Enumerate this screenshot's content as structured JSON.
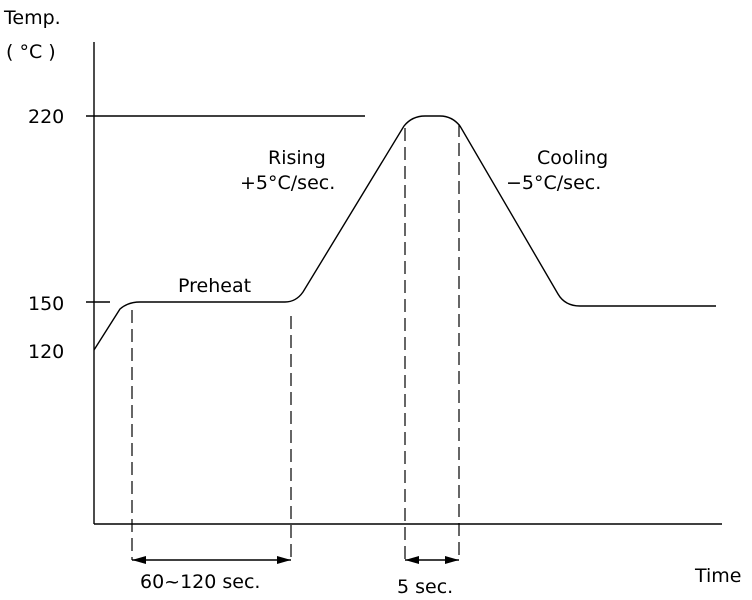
{
  "axes": {
    "y_title": "Temp.",
    "y_unit": "( °C )",
    "x_title": "Time"
  },
  "y_ticks": [
    "220",
    "150",
    "120"
  ],
  "phases": {
    "preheat": "Preheat",
    "rising_1": "Rising",
    "rising_2": "+5°C/sec.",
    "cooling_1": "Cooling",
    "cooling_2": "−5°C/sec."
  },
  "durations": {
    "preheat": "60~120 sec.",
    "peak": "5 sec."
  }
}
